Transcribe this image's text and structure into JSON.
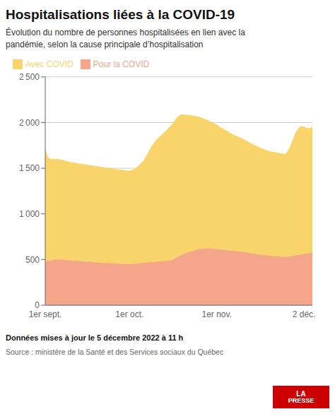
{
  "chart_data": {
    "type": "area",
    "title": "Hospitalisations liées à la COVID-19",
    "subtitle": "Évolution du nombre de personnes hospitalisées en lien avec la\npandémie, selon la cause principale d’hospitalisation",
    "annotations": [
      "Données mises à jour le 5 décembre 2022 à 11 h",
      "Source : ministère de la Santé et des Services sociaux du Québec",
      "LA",
      "PRESSE"
    ],
    "categories": [
      "1er sept.",
      null,
      null,
      null,
      null,
      null,
      null,
      null,
      null,
      null,
      null,
      null,
      null,
      null,
      null,
      null,
      null,
      null,
      null,
      null,
      null,
      null,
      null,
      null,
      null,
      null,
      null,
      null,
      null,
      null,
      "1er oct.",
      null,
      null,
      null,
      null,
      null,
      null,
      null,
      null,
      null,
      null,
      null,
      null,
      null,
      null,
      null,
      null,
      null,
      null,
      null,
      null,
      null,
      null,
      null,
      null,
      null,
      null,
      null,
      null,
      null,
      null,
      "1er nov.",
      null,
      null,
      null,
      null,
      null,
      null,
      null,
      null,
      null,
      null,
      null,
      null,
      null,
      null,
      null,
      null,
      null,
      null,
      null,
      null,
      null,
      null,
      null,
      null,
      null,
      null,
      null,
      null,
      null,
      null,
      "2 déc.",
      null,
      null,
      null
    ],
    "series": [
      {
        "name": "Pour la COVID",
        "color": "#F5A58A",
        "values": [
          480,
          490,
          490,
          495,
          500,
          500,
          498,
          495,
          492,
          490,
          488,
          485,
          483,
          480,
          478,
          476,
          475,
          472,
          470,
          468,
          465,
          463,
          462,
          460,
          458,
          456,
          454,
          452,
          450,
          448,
          450,
          452,
          455,
          458,
          462,
          465,
          468,
          470,
          472,
          475,
          478,
          480,
          482,
          485,
          490,
          495,
          510,
          530,
          545,
          560,
          570,
          580,
          590,
          600,
          610,
          615,
          618,
          620,
          622,
          620,
          618,
          615,
          610,
          608,
          605,
          600,
          598,
          595,
          592,
          590,
          585,
          580,
          575,
          570,
          565,
          560,
          555,
          550,
          548,
          545,
          542,
          540,
          538,
          535,
          532,
          530,
          530,
          535,
          540,
          545,
          550,
          555,
          560,
          565,
          570,
          575
        ]
      },
      {
        "name": "Avec COVID",
        "color": "#F9D46A",
        "values": [
          1220,
          1120,
          1105,
          1100,
          1098,
          1095,
          1090,
          1085,
          1080,
          1075,
          1072,
          1068,
          1065,
          1062,
          1060,
          1058,
          1055,
          1052,
          1050,
          1048,
          1045,
          1042,
          1040,
          1038,
          1035,
          1032,
          1030,
          1028,
          1025,
          1022,
          1020,
          1025,
          1038,
          1062,
          1088,
          1115,
          1165,
          1218,
          1270,
          1312,
          1345,
          1372,
          1400,
          1420,
          1452,
          1478,
          1505,
          1528,
          1538,
          1525,
          1512,
          1498,
          1485,
          1472,
          1455,
          1440,
          1428,
          1412,
          1398,
          1385,
          1372,
          1358,
          1342,
          1328,
          1312,
          1298,
          1282,
          1268,
          1258,
          1248,
          1238,
          1228,
          1215,
          1202,
          1192,
          1182,
          1172,
          1162,
          1155,
          1145,
          1138,
          1135,
          1132,
          1128,
          1125,
          1122,
          1138,
          1190,
          1262,
          1335,
          1382,
          1402,
          1392,
          1372,
          1362,
          1378
        ]
      }
    ],
    "stacked": true,
    "ylim": [
      0,
      2500
    ],
    "yticks": [
      0,
      500,
      {
        "value": 1000,
        "label": "1 000"
      },
      {
        "value": 1500,
        "label": "1 500"
      },
      {
        "value": 2000,
        "label": "2 000"
      },
      {
        "value": 2500,
        "label": "2 500"
      }
    ],
    "grid": true,
    "legend": "top"
  }
}
